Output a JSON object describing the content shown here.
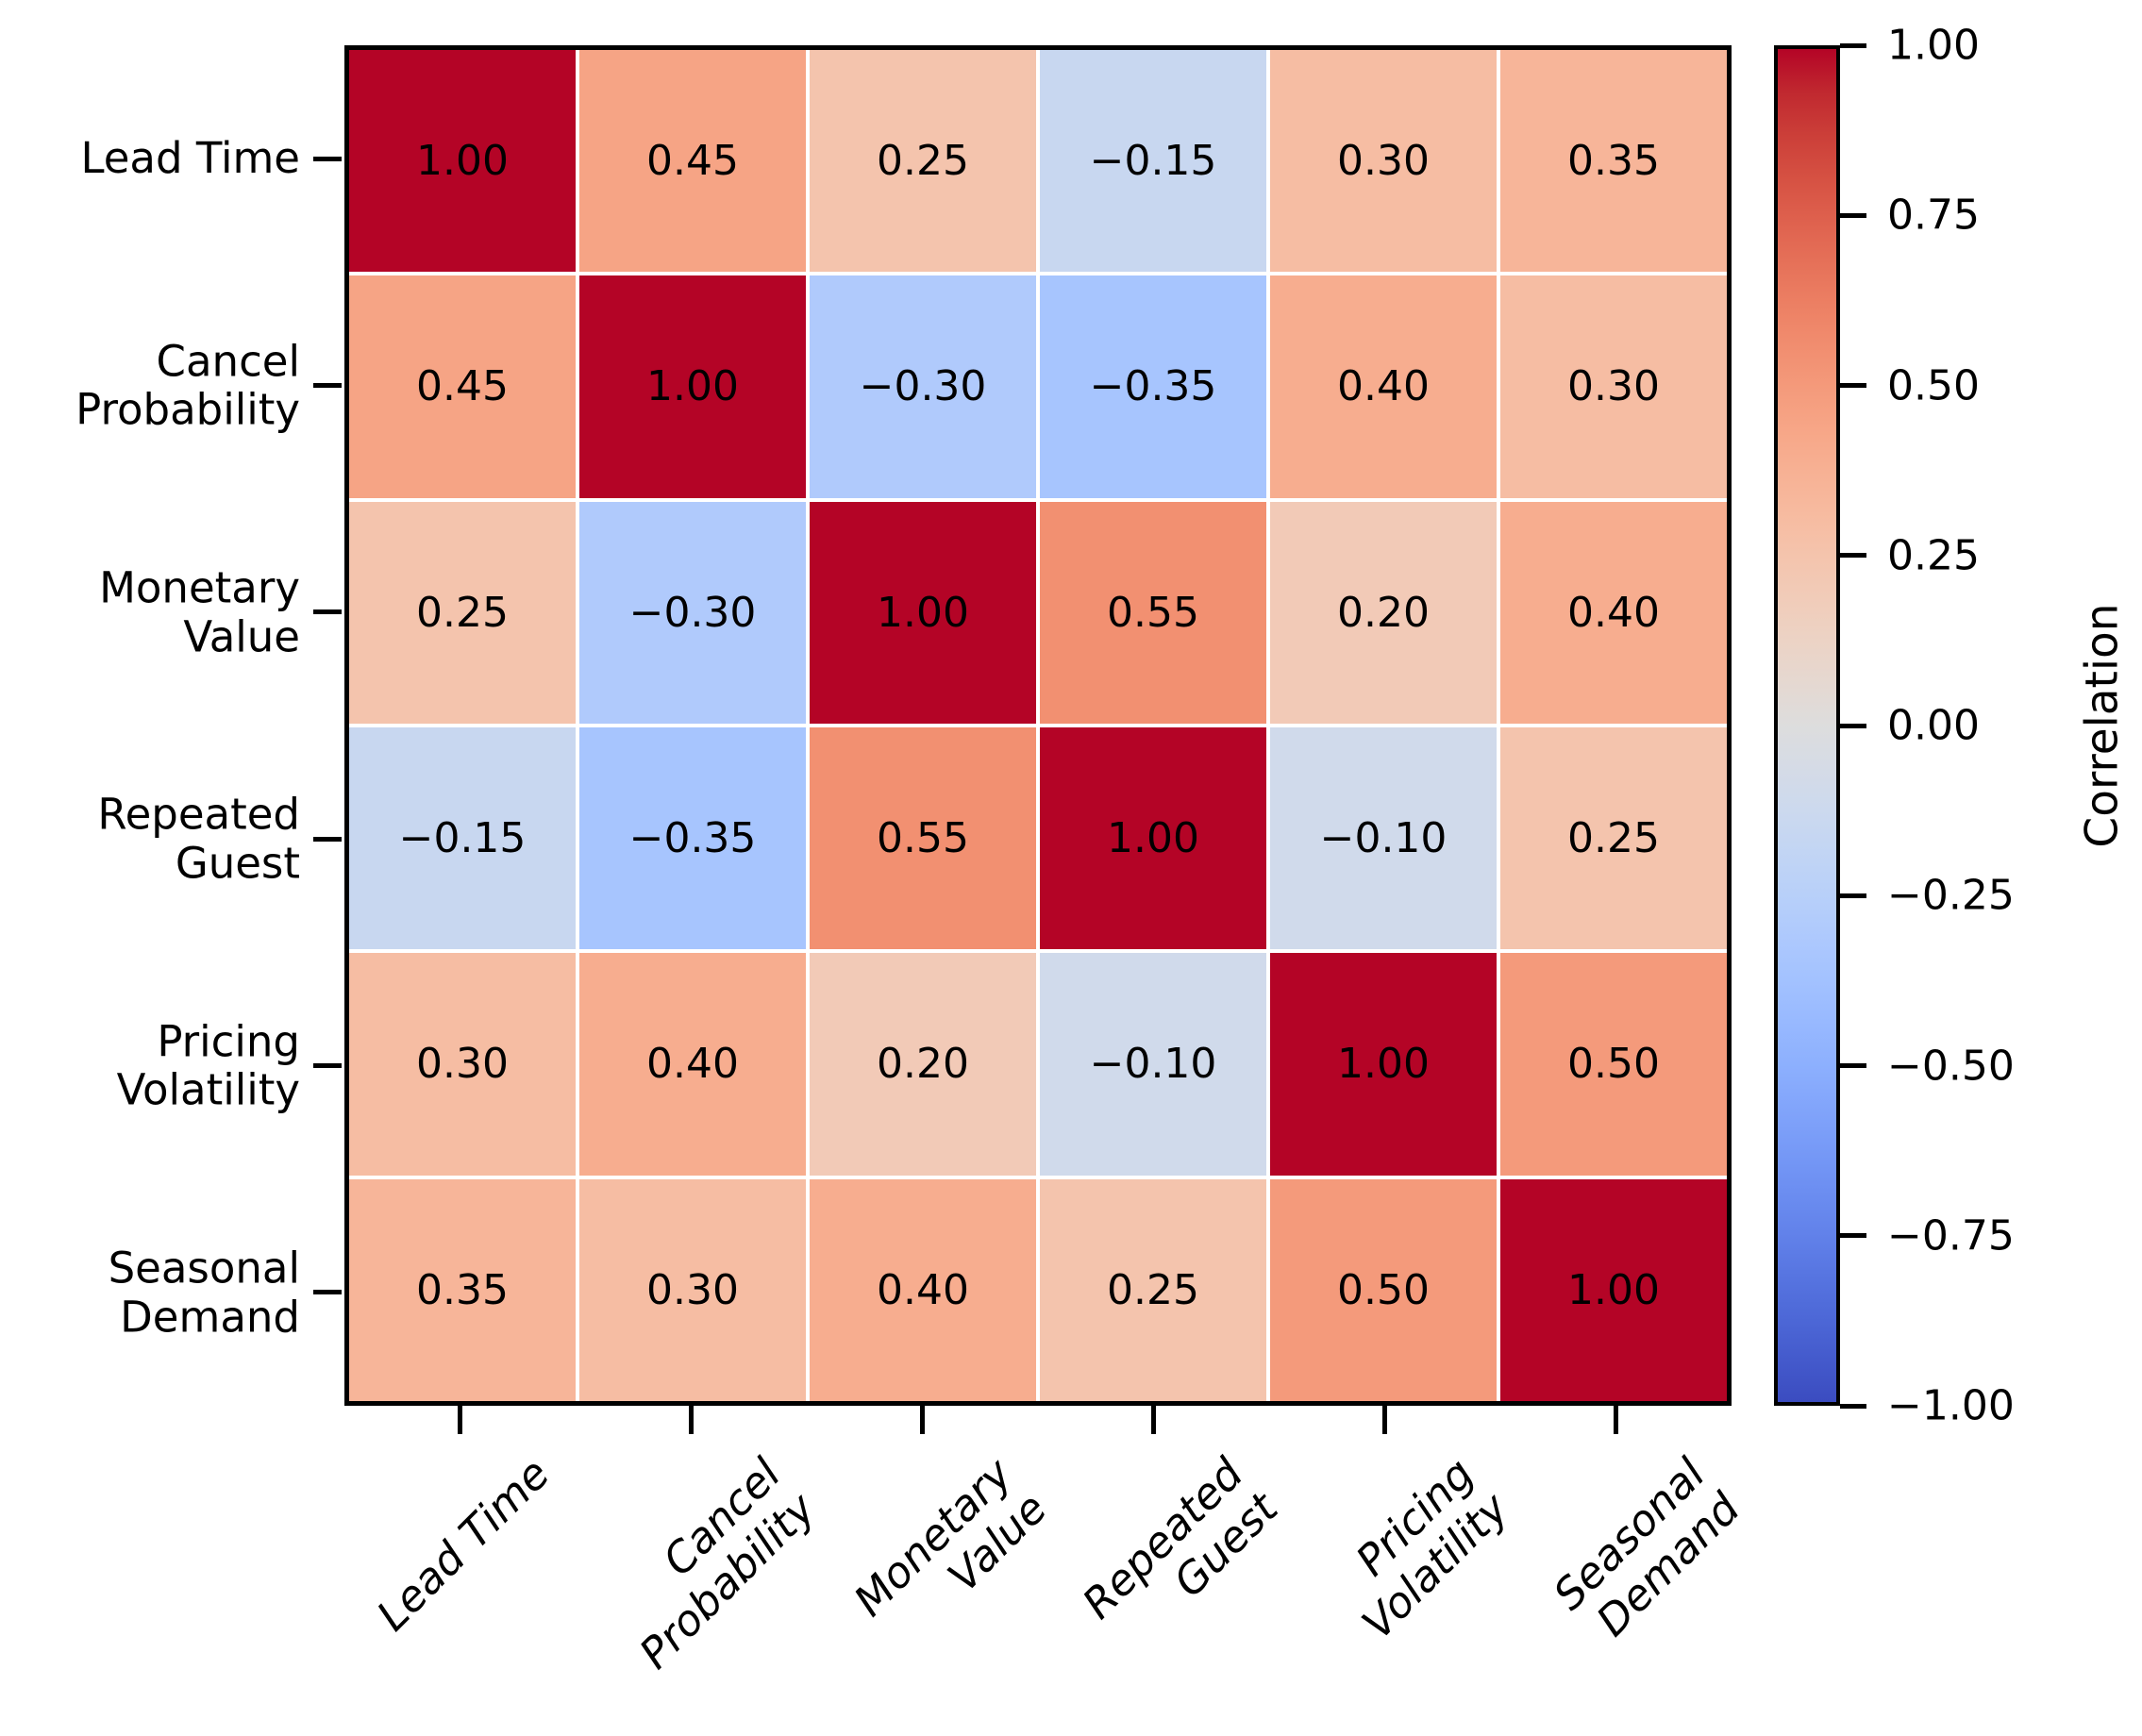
{
  "chart_data": {
    "type": "heatmap",
    "title": "",
    "categories": [
      "Lead Time",
      "Cancel Probability",
      "Monetary Value",
      "Repeated Guest",
      "Pricing Volatility",
      "Seasonal Demand"
    ],
    "y_tick_labels": [
      "Lead Time",
      "Cancel\nProbability",
      "Monetary\nValue",
      "Repeated\nGuest",
      "Pricing\nVolatility",
      "Seasonal\nDemand"
    ],
    "x_tick_labels": [
      "Lead Time",
      "Cancel\nProbability",
      "Monetary\nValue",
      "Repeated\nGuest",
      "Pricing\nVolatility",
      "Seasonal\nDemand"
    ],
    "matrix": [
      [
        1.0,
        0.45,
        0.25,
        -0.15,
        0.3,
        0.35
      ],
      [
        0.45,
        1.0,
        -0.3,
        -0.35,
        0.4,
        0.3
      ],
      [
        0.25,
        -0.3,
        1.0,
        0.55,
        0.2,
        0.4
      ],
      [
        -0.15,
        -0.35,
        0.55,
        1.0,
        -0.1,
        0.25
      ],
      [
        0.3,
        0.4,
        0.2,
        -0.1,
        1.0,
        0.5
      ],
      [
        0.35,
        0.3,
        0.4,
        0.25,
        0.5,
        1.0
      ]
    ],
    "cell_value_decimals": 2,
    "colormap": "coolwarm",
    "vmin": -1.0,
    "vmax": 1.0,
    "grid_line_color": "#ffffff",
    "annotation_color": "#000000",
    "colorbar": {
      "label": "Correlation",
      "position": "right",
      "tick_values": [
        1.0,
        0.75,
        0.5,
        0.25,
        0.0,
        -0.25,
        -0.5,
        -0.75,
        -1.0
      ],
      "tick_labels": [
        "1.00",
        "0.75",
        "0.50",
        "0.25",
        "0.00",
        "−0.25",
        "−0.50",
        "−0.75",
        "−1.00"
      ]
    },
    "accent_colors": {
      "max": "#b40426",
      "mid": "#dddddd",
      "min": "#3b4cc0"
    }
  }
}
